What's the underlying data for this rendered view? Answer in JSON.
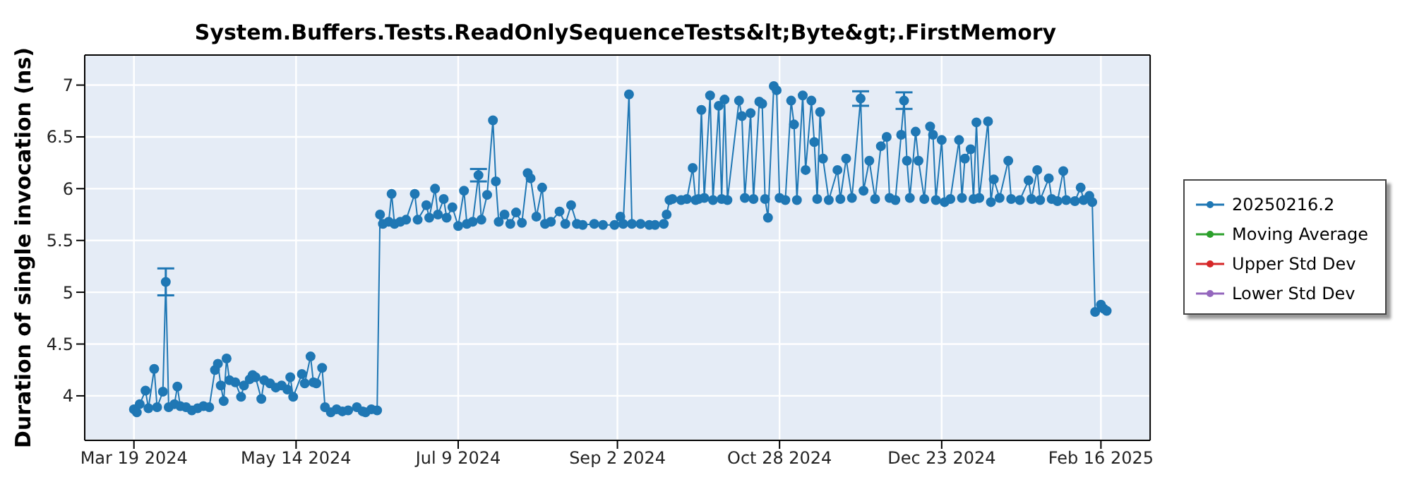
{
  "chart_data": {
    "type": "line",
    "title": "System.Buffers.Tests.ReadOnlySequenceTests&lt;Byte&gt;.FirstMemory",
    "ylabel": "Duration of single invocation (ns)",
    "xlim": [
      "2024-03-02",
      "2025-03-05"
    ],
    "xticks": [
      {
        "value": "2024-03-19",
        "label": "Mar 19 2024"
      },
      {
        "value": "2024-05-14",
        "label": "May 14 2024"
      },
      {
        "value": "2024-07-09",
        "label": "Jul 9 2024"
      },
      {
        "value": "2024-09-02",
        "label": "Sep 2 2024"
      },
      {
        "value": "2024-10-28",
        "label": "Oct 28 2024"
      },
      {
        "value": "2024-12-23",
        "label": "Dec 23 2024"
      },
      {
        "value": "2025-02-16",
        "label": "Feb 16 2025"
      }
    ],
    "ylim": [
      3.57,
      7.29
    ],
    "yticks": [
      4,
      4.5,
      5,
      5.5,
      6,
      6.5,
      7
    ],
    "grid": true,
    "legend": "right",
    "marker": "circle",
    "x": [
      "2024-03-19",
      "2024-03-20",
      "2024-03-21",
      "2024-03-23",
      "2024-03-24",
      "2024-03-26",
      "2024-03-27",
      "2024-03-29",
      "2024-03-30",
      "2024-03-31",
      "2024-04-02",
      "2024-04-03",
      "2024-04-04",
      "2024-04-06",
      "2024-04-08",
      "2024-04-10",
      "2024-04-12",
      "2024-04-14",
      "2024-04-16",
      "2024-04-17",
      "2024-04-18",
      "2024-04-19",
      "2024-04-20",
      "2024-04-21",
      "2024-04-23",
      "2024-04-25",
      "2024-04-26",
      "2024-04-28",
      "2024-04-29",
      "2024-04-30",
      "2024-05-02",
      "2024-05-03",
      "2024-05-05",
      "2024-05-07",
      "2024-05-09",
      "2024-05-11",
      "2024-05-12",
      "2024-05-13",
      "2024-05-16",
      "2024-05-17",
      "2024-05-19",
      "2024-05-20",
      "2024-05-21",
      "2024-05-23",
      "2024-05-24",
      "2024-05-26",
      "2024-05-28",
      "2024-05-30",
      "2024-06-01",
      "2024-06-04",
      "2024-06-06",
      "2024-06-07",
      "2024-06-09",
      "2024-06-11",
      "2024-06-12",
      "2024-06-13",
      "2024-06-15",
      "2024-06-16",
      "2024-06-17",
      "2024-06-19",
      "2024-06-21",
      "2024-06-24",
      "2024-06-25",
      "2024-06-28",
      "2024-06-29",
      "2024-07-01",
      "2024-07-02",
      "2024-07-04",
      "2024-07-05",
      "2024-07-07",
      "2024-07-09",
      "2024-07-11",
      "2024-07-12",
      "2024-07-14",
      "2024-07-16",
      "2024-07-17",
      "2024-07-19",
      "2024-07-21",
      "2024-07-22",
      "2024-07-23",
      "2024-07-25",
      "2024-07-27",
      "2024-07-29",
      "2024-07-31",
      "2024-08-02",
      "2024-08-03",
      "2024-08-05",
      "2024-08-07",
      "2024-08-08",
      "2024-08-10",
      "2024-08-13",
      "2024-08-15",
      "2024-08-17",
      "2024-08-19",
      "2024-08-21",
      "2024-08-25",
      "2024-08-28",
      "2024-09-01",
      "2024-09-03",
      "2024-09-04",
      "2024-09-06",
      "2024-09-07",
      "2024-09-10",
      "2024-09-13",
      "2024-09-15",
      "2024-09-18",
      "2024-09-19",
      "2024-09-20",
      "2024-09-21",
      "2024-09-24",
      "2024-09-26",
      "2024-09-28",
      "2024-09-29",
      "2024-09-30",
      "2024-10-01",
      "2024-10-02",
      "2024-10-04",
      "2024-10-05",
      "2024-10-07",
      "2024-10-08",
      "2024-10-09",
      "2024-10-10",
      "2024-10-14",
      "2024-10-15",
      "2024-10-16",
      "2024-10-18",
      "2024-10-19",
      "2024-10-21",
      "2024-10-22",
      "2024-10-23",
      "2024-10-24",
      "2024-10-26",
      "2024-10-27",
      "2024-10-28",
      "2024-10-30",
      "2024-11-01",
      "2024-11-02",
      "2024-11-03",
      "2024-11-05",
      "2024-11-06",
      "2024-11-08",
      "2024-11-09",
      "2024-11-10",
      "2024-11-11",
      "2024-11-12",
      "2024-11-14",
      "2024-11-17",
      "2024-11-18",
      "2024-11-20",
      "2024-11-22",
      "2024-11-25",
      "2024-11-26",
      "2024-11-28",
      "2024-11-30",
      "2024-12-02",
      "2024-12-04",
      "2024-12-05",
      "2024-12-07",
      "2024-12-09",
      "2024-12-10",
      "2024-12-11",
      "2024-12-12",
      "2024-12-14",
      "2024-12-15",
      "2024-12-17",
      "2024-12-19",
      "2024-12-20",
      "2024-12-21",
      "2024-12-23",
      "2024-12-24",
      "2024-12-26",
      "2024-12-29",
      "2024-12-30",
      "2024-12-31",
      "2025-01-02",
      "2025-01-03",
      "2025-01-04",
      "2025-01-05",
      "2025-01-08",
      "2025-01-09",
      "2025-01-10",
      "2025-01-12",
      "2025-01-15",
      "2025-01-16",
      "2025-01-19",
      "2025-01-22",
      "2025-01-23",
      "2025-01-25",
      "2025-01-26",
      "2025-01-29",
      "2025-01-30",
      "2025-02-01",
      "2025-02-03",
      "2025-02-04",
      "2025-02-07",
      "2025-02-09",
      "2025-02-10",
      "2025-02-12",
      "2025-02-13",
      "2025-02-14",
      "2025-02-16",
      "2025-02-17",
      "2025-02-18"
    ],
    "series": [
      {
        "name": "20250216.2",
        "color": "#1f77b4",
        "values": [
          3.87,
          3.84,
          3.92,
          4.05,
          3.88,
          4.26,
          3.89,
          4.04,
          5.1,
          3.89,
          3.92,
          4.09,
          3.9,
          3.89,
          3.86,
          3.88,
          3.9,
          3.89,
          4.25,
          4.31,
          4.1,
          3.95,
          4.36,
          4.15,
          4.13,
          3.99,
          4.1,
          4.16,
          4.2,
          4.18,
          3.97,
          4.15,
          4.12,
          4.08,
          4.1,
          4.06,
          4.18,
          3.99,
          4.21,
          4.12,
          4.38,
          4.13,
          4.12,
          4.27,
          3.89,
          3.84,
          3.87,
          3.85,
          3.86,
          3.89,
          3.85,
          3.84,
          3.87,
          3.86,
          5.75,
          5.66,
          5.68,
          5.95,
          5.66,
          5.68,
          5.7,
          5.95,
          5.7,
          5.84,
          5.72,
          6.0,
          5.75,
          5.9,
          5.72,
          5.82,
          5.64,
          5.98,
          5.66,
          5.68,
          6.13,
          5.7,
          5.94,
          6.66,
          6.07,
          5.68,
          5.75,
          5.66,
          5.77,
          5.67,
          6.15,
          6.1,
          5.73,
          6.01,
          5.66,
          5.68,
          5.78,
          5.66,
          5.84,
          5.66,
          5.65,
          5.66,
          5.65,
          5.65,
          5.73,
          5.66,
          6.91,
          5.66,
          5.66,
          5.65,
          5.65,
          5.66,
          5.75,
          5.89,
          5.9,
          5.89,
          5.9,
          6.2,
          5.89,
          5.9,
          6.76,
          5.91,
          6.9,
          5.89,
          6.8,
          5.9,
          6.86,
          5.89,
          6.85,
          6.7,
          5.91,
          6.73,
          5.9,
          6.84,
          6.82,
          5.9,
          5.72,
          6.99,
          6.95,
          5.91,
          5.89,
          6.85,
          6.62,
          5.89,
          6.9,
          6.18,
          6.85,
          6.45,
          5.9,
          6.74,
          6.29,
          5.89,
          6.18,
          5.9,
          6.29,
          5.91,
          6.87,
          5.98,
          6.27,
          5.9,
          6.41,
          6.5,
          5.91,
          5.89,
          6.52,
          6.85,
          6.27,
          5.91,
          6.55,
          6.27,
          5.9,
          6.6,
          6.52,
          5.89,
          6.47,
          5.87,
          5.9,
          6.47,
          5.91,
          6.29,
          6.38,
          5.9,
          6.64,
          5.91,
          6.65,
          5.87,
          6.09,
          5.91,
          6.27,
          5.9,
          5.89,
          6.08,
          5.9,
          6.18,
          5.89,
          6.1,
          5.9,
          5.88,
          6.17,
          5.89,
          5.88,
          6.01,
          5.89,
          5.93,
          5.87,
          4.81,
          4.88,
          4.84,
          4.82
        ],
        "errors": [
          null,
          null,
          null,
          null,
          null,
          null,
          null,
          null,
          0.13,
          null,
          null,
          null,
          null,
          null,
          null,
          null,
          null,
          null,
          null,
          null,
          null,
          null,
          null,
          null,
          null,
          null,
          null,
          null,
          null,
          null,
          null,
          null,
          null,
          null,
          null,
          null,
          null,
          null,
          null,
          null,
          null,
          null,
          null,
          null,
          null,
          null,
          null,
          null,
          null,
          null,
          null,
          null,
          null,
          null,
          null,
          null,
          null,
          null,
          null,
          null,
          null,
          null,
          null,
          null,
          null,
          null,
          null,
          null,
          null,
          null,
          null,
          null,
          null,
          null,
          0.06,
          null,
          null,
          null,
          null,
          null,
          null,
          null,
          null,
          null,
          null,
          null,
          null,
          null,
          null,
          null,
          null,
          null,
          null,
          null,
          null,
          null,
          null,
          null,
          null,
          null,
          null,
          null,
          null,
          null,
          null,
          null,
          null,
          null,
          null,
          null,
          null,
          null,
          null,
          null,
          null,
          null,
          null,
          null,
          null,
          null,
          null,
          null,
          null,
          null,
          null,
          null,
          null,
          null,
          null,
          null,
          null,
          null,
          null,
          null,
          null,
          null,
          null,
          null,
          null,
          null,
          null,
          null,
          null,
          null,
          null,
          null,
          null,
          null,
          null,
          null,
          0.07,
          null,
          null,
          null,
          null,
          null,
          null,
          null,
          null,
          0.08,
          null,
          null,
          null,
          null,
          null,
          null,
          null,
          null,
          null,
          null,
          null,
          null,
          null,
          null,
          null,
          null,
          null,
          null,
          null,
          null,
          null,
          null,
          null,
          null,
          null,
          null,
          null,
          null,
          null,
          null,
          null,
          null,
          null,
          null,
          null,
          null,
          null,
          null,
          null,
          null,
          null,
          null,
          null
        ]
      },
      {
        "name": "Moving Average",
        "color": "#2ca02c",
        "values": [
          null,
          null,
          null,
          null,
          null,
          null,
          null,
          null,
          null,
          null,
          null,
          null,
          null,
          null,
          null,
          null,
          null,
          null,
          null,
          null,
          null,
          null,
          null,
          null,
          null,
          null,
          null,
          null,
          null,
          null,
          null,
          null,
          null,
          null,
          null,
          null,
          null,
          null,
          null,
          null,
          null,
          null,
          null,
          null,
          null,
          null,
          null,
          null,
          null,
          null,
          null,
          null,
          null,
          null,
          null,
          null,
          null,
          null,
          null,
          null,
          null,
          null,
          null,
          null,
          null,
          null,
          null,
          null,
          null,
          null,
          null,
          null,
          null,
          null,
          null,
          null,
          null,
          null,
          null,
          null,
          null,
          null,
          null,
          null,
          null,
          null,
          null,
          null,
          null,
          null,
          null,
          null,
          null,
          null,
          null,
          null,
          null,
          null,
          null,
          null,
          null,
          null,
          null,
          null,
          null,
          null,
          null,
          null,
          null,
          null,
          null,
          null,
          null,
          null,
          null,
          null,
          null,
          null,
          null,
          null,
          null,
          null,
          null,
          null,
          null,
          null,
          null,
          null,
          null,
          null,
          null,
          null,
          null,
          null,
          null,
          null,
          null,
          null,
          null,
          null,
          null,
          null,
          null,
          null,
          null,
          null,
          null,
          null,
          null,
          null,
          null,
          null,
          null,
          null,
          null,
          null,
          null,
          null,
          null,
          null,
          null,
          null,
          null,
          null,
          null,
          null,
          null,
          null,
          null,
          null,
          null,
          null,
          null,
          null,
          null,
          null,
          null,
          null,
          null,
          null,
          null,
          null,
          null,
          null,
          null,
          null,
          null,
          null,
          null,
          null,
          null,
          null,
          null,
          null,
          null,
          null,
          null,
          null,
          null,
          null,
          null,
          null,
          null
        ]
      },
      {
        "name": "Upper Std Dev",
        "color": "#d62728",
        "values": [
          null,
          null,
          null,
          null,
          null,
          null,
          null,
          null,
          null,
          null,
          null,
          null,
          null,
          null,
          null,
          null,
          null,
          null,
          null,
          null,
          null,
          null,
          null,
          null,
          null,
          null,
          null,
          null,
          null,
          null,
          null,
          null,
          null,
          null,
          null,
          null,
          null,
          null,
          null,
          null,
          null,
          null,
          null,
          null,
          null,
          null,
          null,
          null,
          null,
          null,
          null,
          null,
          null,
          null,
          null,
          null,
          null,
          null,
          null,
          null,
          null,
          null,
          null,
          null,
          null,
          null,
          null,
          null,
          null,
          null,
          null,
          null,
          null,
          null,
          null,
          null,
          null,
          null,
          null,
          null,
          null,
          null,
          null,
          null,
          null,
          null,
          null,
          null,
          null,
          null,
          null,
          null,
          null,
          null,
          null,
          null,
          null,
          null,
          null,
          null,
          null,
          null,
          null,
          null,
          null,
          null,
          null,
          null,
          null,
          null,
          null,
          null,
          null,
          null,
          null,
          null,
          null,
          null,
          null,
          null,
          null,
          null,
          null,
          null,
          null,
          null,
          null,
          null,
          null,
          null,
          null,
          null,
          null,
          null,
          null,
          null,
          null,
          null,
          null,
          null,
          null,
          null,
          null,
          null,
          null,
          null,
          null,
          null,
          null,
          null,
          null,
          null,
          null,
          null,
          null,
          null,
          null,
          null,
          null,
          null,
          null,
          null,
          null,
          null,
          null,
          null,
          null,
          null,
          null,
          null,
          null,
          null,
          null,
          null,
          null,
          null,
          null,
          null,
          null,
          null,
          null,
          null,
          null,
          null,
          null,
          null,
          null,
          null,
          null,
          null,
          null,
          null,
          null,
          null,
          null,
          null,
          null,
          null,
          null,
          null,
          null,
          null,
          null
        ]
      },
      {
        "name": "Lower Std Dev",
        "color": "#9467bd",
        "values": [
          null,
          null,
          null,
          null,
          null,
          null,
          null,
          null,
          null,
          null,
          null,
          null,
          null,
          null,
          null,
          null,
          null,
          null,
          null,
          null,
          null,
          null,
          null,
          null,
          null,
          null,
          null,
          null,
          null,
          null,
          null,
          null,
          null,
          null,
          null,
          null,
          null,
          null,
          null,
          null,
          null,
          null,
          null,
          null,
          null,
          null,
          null,
          null,
          null,
          null,
          null,
          null,
          null,
          null,
          null,
          null,
          null,
          null,
          null,
          null,
          null,
          null,
          null,
          null,
          null,
          null,
          null,
          null,
          null,
          null,
          null,
          null,
          null,
          null,
          null,
          null,
          null,
          null,
          null,
          null,
          null,
          null,
          null,
          null,
          null,
          null,
          null,
          null,
          null,
          null,
          null,
          null,
          null,
          null,
          null,
          null,
          null,
          null,
          null,
          null,
          null,
          null,
          null,
          null,
          null,
          null,
          null,
          null,
          null,
          null,
          null,
          null,
          null,
          null,
          null,
          null,
          null,
          null,
          null,
          null,
          null,
          null,
          null,
          null,
          null,
          null,
          null,
          null,
          null,
          null,
          null,
          null,
          null,
          null,
          null,
          null,
          null,
          null,
          null,
          null,
          null,
          null,
          null,
          null,
          null,
          null,
          null,
          null,
          null,
          null,
          null,
          null,
          null,
          null,
          null,
          null,
          null,
          null,
          null,
          null,
          null,
          null,
          null,
          null,
          null,
          null,
          null,
          null,
          null,
          null,
          null,
          null,
          null,
          null,
          null,
          null,
          null,
          null,
          null,
          null,
          null,
          null,
          null,
          null,
          null,
          null,
          null,
          null,
          null,
          null,
          null,
          null,
          null,
          null,
          null,
          null,
          null,
          null,
          null,
          null,
          null,
          null,
          null
        ]
      }
    ]
  }
}
